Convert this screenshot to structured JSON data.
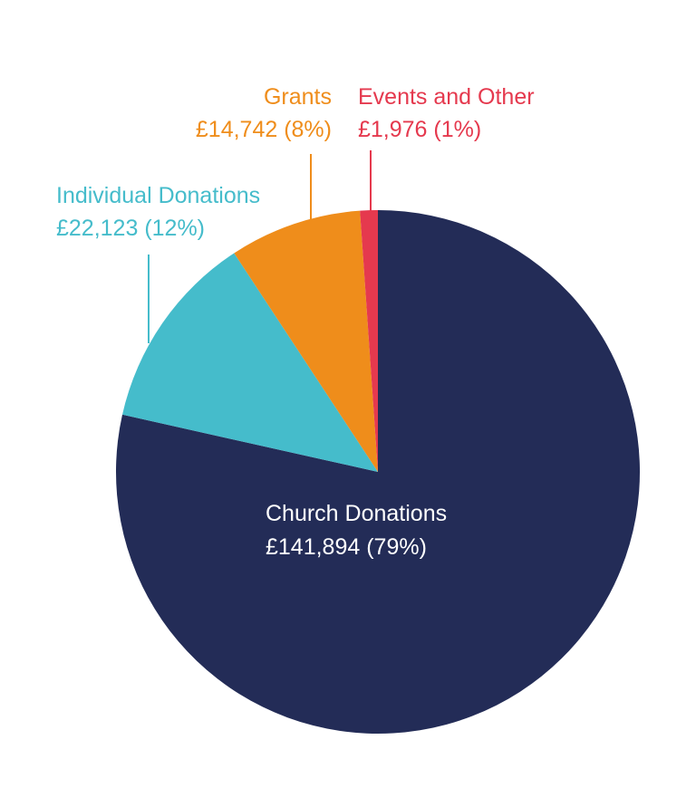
{
  "chart_data": {
    "type": "pie",
    "title": "",
    "start_angle_deg": 0,
    "direction": "clockwise",
    "slices": [
      {
        "name": "Church Donations",
        "amount": "£141,894",
        "percent": "(79%)",
        "value": 141894,
        "color": "#232c57",
        "label_color": "#ffffff",
        "label_placement": "inside"
      },
      {
        "name": "Individual Donations",
        "amount": "£22,123",
        "percent": "(12%)",
        "value": 22123,
        "color": "#45bccb",
        "label_color": "#45bccb",
        "label_placement": "outside-upper-left"
      },
      {
        "name": "Grants",
        "amount": "£14,742",
        "percent": "(8%)",
        "value": 14742,
        "color": "#ef8d1b",
        "label_color": "#ef8d1b",
        "label_placement": "outside-top"
      },
      {
        "name": "Events and Other",
        "amount": "£1,976",
        "percent": "(1%)",
        "value": 1976,
        "color": "#e5394e",
        "label_color": "#e5394e",
        "label_placement": "outside-top-right"
      }
    ]
  }
}
